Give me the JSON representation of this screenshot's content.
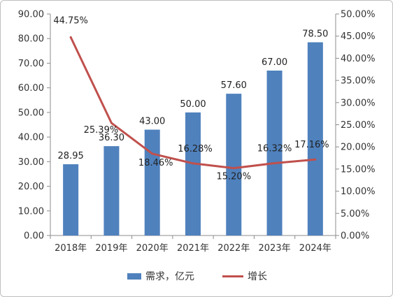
{
  "chart_data": {
    "type": "bar",
    "categories": [
      "2018年",
      "2019年",
      "2020年",
      "2021年",
      "2022年",
      "2023年",
      "2024年"
    ],
    "series": [
      {
        "name": "需求，亿元",
        "kind": "bar",
        "axis": "left",
        "color": "#4f81bd",
        "values": [
          28.95,
          36.3,
          43.0,
          50.0,
          57.6,
          67.0,
          78.5
        ],
        "labels": [
          "28.95",
          "36.30",
          "43.00",
          "50.00",
          "57.60",
          "67.00",
          "78.50"
        ]
      },
      {
        "name": "增长",
        "kind": "line",
        "axis": "right",
        "color": "#c0504d",
        "values": [
          44.75,
          25.39,
          18.46,
          16.28,
          15.2,
          16.32,
          17.16
        ],
        "labels": [
          "44.75%",
          "25.39%",
          "18.46%",
          "16.28%",
          "15.20%",
          "16.32%",
          "17.16%"
        ]
      }
    ],
    "y_left": {
      "range": [
        0,
        90
      ],
      "ticks": [
        "0.00",
        "10.00",
        "20.00",
        "30.00",
        "40.00",
        "50.00",
        "60.00",
        "70.00",
        "80.00",
        "90.00"
      ]
    },
    "y_right": {
      "range": [
        0,
        50
      ],
      "ticks": [
        "0.00%",
        "5.00%",
        "10.00%",
        "15.00%",
        "20.00%",
        "25.00%",
        "30.00%",
        "35.00%",
        "40.00%",
        "45.00%",
        "50.00%"
      ]
    },
    "grid": false,
    "legend_position": "bottom"
  }
}
